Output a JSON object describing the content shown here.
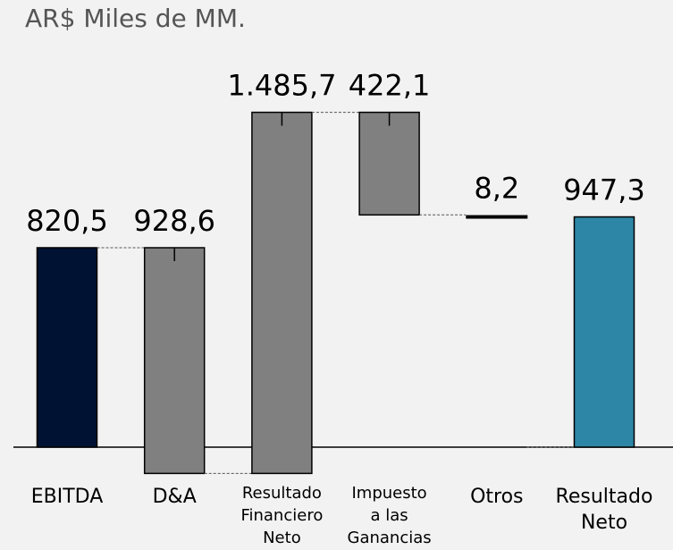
{
  "chart_data": {
    "type": "waterfall",
    "title": "AR$ Miles de MM.",
    "categories": [
      [
        "EBITDA"
      ],
      [
        "D&A"
      ],
      [
        "Resultado",
        "Financiero",
        "Neto"
      ],
      [
        "Impuesto",
        "a las",
        "Ganancias"
      ],
      [
        "Otros"
      ],
      [
        "Resultado",
        "Neto"
      ]
    ],
    "values": [
      820.5,
      -928.6,
      1485.7,
      -422.1,
      -8.2,
      947.3
    ],
    "value_labels": [
      "820,5",
      "928,6",
      "1.485,7",
      "422,1",
      "8,2",
      "947,3"
    ],
    "measures": [
      "absolute",
      "relative",
      "relative",
      "relative",
      "relative",
      "total"
    ],
    "colors": [
      "#001233",
      "#808080",
      "#808080",
      "#808080",
      "#000000",
      "#2e86a6"
    ]
  }
}
